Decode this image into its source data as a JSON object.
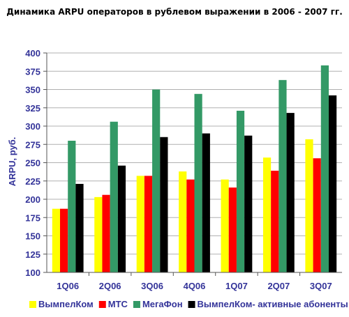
{
  "chart_data": {
    "type": "bar",
    "title": "Динамика ARPU операторов в рублевом выражении в 2006 - 2007 гг.",
    "ylabel": "ARPU, руб.",
    "xlabel": "",
    "ylim": [
      100,
      400
    ],
    "yticks": [
      100,
      125,
      150,
      175,
      200,
      225,
      250,
      275,
      300,
      325,
      350,
      375,
      400
    ],
    "grid": true,
    "legend_position": "bottom",
    "categories": [
      "1Q06",
      "2Q06",
      "3Q06",
      "4Q06",
      "1Q07",
      "2Q07",
      "3Q07"
    ],
    "series": [
      {
        "name": "ВымпелКом",
        "color": "#ffff00",
        "values": [
          187,
          203,
          232,
          238,
          227,
          257,
          282
        ]
      },
      {
        "name": "МТС",
        "color": "#ff0000",
        "values": [
          187,
          206,
          232,
          227,
          216,
          239,
          256
        ]
      },
      {
        "name": "МегаФон",
        "color": "#339966",
        "values": [
          280,
          306,
          350,
          344,
          321,
          363,
          383
        ]
      },
      {
        "name": "ВымпелКом- активные абоненты",
        "color": "#000000",
        "values": [
          221,
          246,
          285,
          290,
          287,
          318,
          342
        ]
      }
    ]
  }
}
